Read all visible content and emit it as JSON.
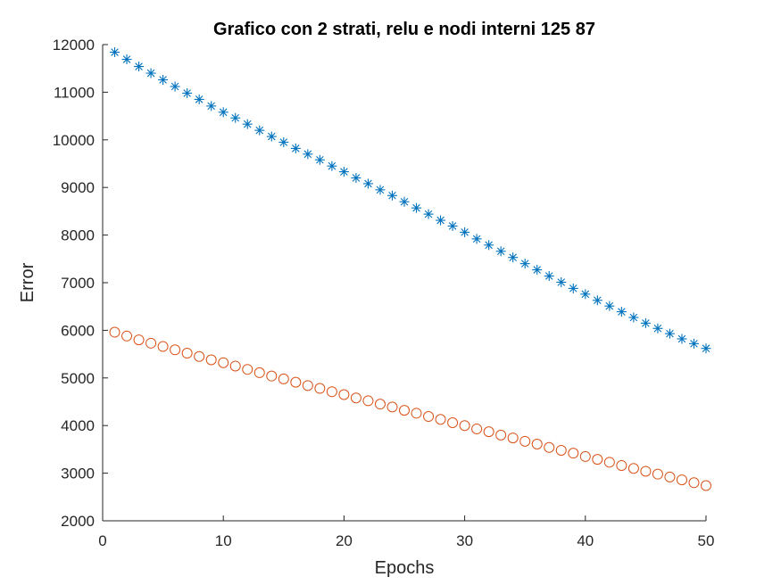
{
  "chart_data": {
    "type": "scatter",
    "title": "Grafico con 2 strati, relu e nodi interni 125   87",
    "xlabel": "Epochs",
    "ylabel": "Error",
    "xlim": [
      0,
      50
    ],
    "ylim": [
      2000,
      12000
    ],
    "xticks": [
      0,
      10,
      20,
      30,
      40,
      50
    ],
    "yticks": [
      2000,
      3000,
      4000,
      5000,
      6000,
      7000,
      8000,
      9000,
      10000,
      11000,
      12000
    ],
    "grid": false,
    "box": false,
    "series": [
      {
        "marker": "asterisk",
        "color": "#0072BD",
        "x": [
          1,
          2,
          3,
          4,
          5,
          6,
          7,
          8,
          9,
          10,
          11,
          12,
          13,
          14,
          15,
          16,
          17,
          18,
          19,
          20,
          21,
          22,
          23,
          24,
          25,
          26,
          27,
          28,
          29,
          30,
          31,
          32,
          33,
          34,
          35,
          36,
          37,
          38,
          39,
          40,
          41,
          42,
          43,
          44,
          45,
          46,
          47,
          48,
          49,
          50
        ],
        "values": [
          11840,
          11690,
          11540,
          11400,
          11260,
          11120,
          10980,
          10850,
          10710,
          10580,
          10460,
          10330,
          10200,
          10070,
          9950,
          9820,
          9700,
          9580,
          9450,
          9330,
          9200,
          9080,
          8950,
          8830,
          8700,
          8570,
          8440,
          8310,
          8190,
          8060,
          7920,
          7790,
          7660,
          7530,
          7400,
          7270,
          7140,
          7010,
          6880,
          6760,
          6630,
          6510,
          6390,
          6270,
          6150,
          6040,
          5930,
          5820,
          5720,
          5620
        ]
      },
      {
        "marker": "circle",
        "color": "#D95319",
        "x": [
          1,
          2,
          3,
          4,
          5,
          6,
          7,
          8,
          9,
          10,
          11,
          12,
          13,
          14,
          15,
          16,
          17,
          18,
          19,
          20,
          21,
          22,
          23,
          24,
          25,
          26,
          27,
          28,
          29,
          30,
          31,
          32,
          33,
          34,
          35,
          36,
          37,
          38,
          39,
          40,
          41,
          42,
          43,
          44,
          45,
          46,
          47,
          48,
          49,
          50
        ],
        "values": [
          5960,
          5880,
          5800,
          5730,
          5660,
          5590,
          5520,
          5450,
          5380,
          5320,
          5250,
          5180,
          5110,
          5040,
          4980,
          4910,
          4840,
          4780,
          4710,
          4650,
          4580,
          4520,
          4450,
          4390,
          4320,
          4260,
          4190,
          4130,
          4060,
          4000,
          3930,
          3870,
          3800,
          3740,
          3670,
          3610,
          3540,
          3480,
          3420,
          3350,
          3290,
          3230,
          3160,
          3100,
          3040,
          2980,
          2920,
          2860,
          2800,
          2740
        ]
      }
    ]
  }
}
